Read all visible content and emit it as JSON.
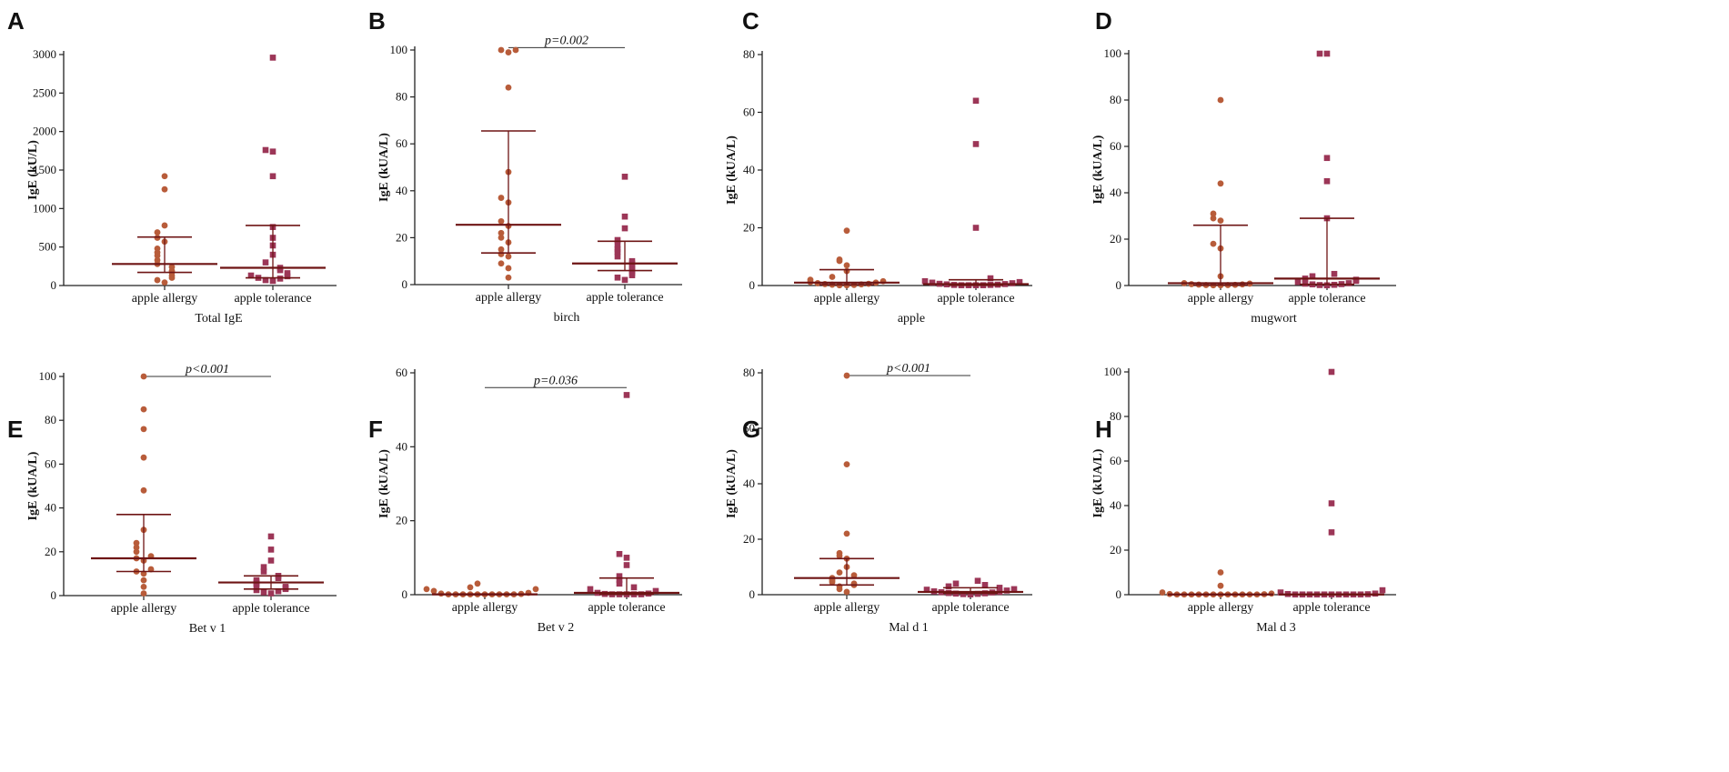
{
  "colors": {
    "allergy": "#b85c3a",
    "tolerance": "#9c3657",
    "median_line": "#6e1414",
    "axis": "#222222",
    "sig_line": "#333333"
  },
  "chart_data": [
    {
      "letter": "A",
      "type": "scatter",
      "xlabel": "Total IgE",
      "ylabel": "IgE (kU/L)",
      "ylim": [
        0,
        3000
      ],
      "yticks": [
        0,
        500,
        1000,
        1500,
        2000,
        2500,
        3000
      ],
      "categories": [
        "apple allergy",
        "apple tolerance"
      ],
      "series": [
        {
          "name": "apple allergy",
          "marker": "circle",
          "median": 280,
          "q1": 170,
          "q3": 630,
          "values": [
            1420,
            1250,
            780,
            690,
            620,
            570,
            480,
            430,
            390,
            330,
            280,
            240,
            190,
            170,
            130,
            100,
            70,
            40
          ]
        },
        {
          "name": "apple tolerance",
          "marker": "square",
          "median": 230,
          "q1": 100,
          "q3": 780,
          "values": [
            2960,
            1760,
            1740,
            1420,
            760,
            620,
            520,
            400,
            300,
            230,
            200,
            160,
            130,
            120,
            100,
            90,
            70,
            60
          ]
        }
      ],
      "significance": null
    },
    {
      "letter": "B",
      "type": "scatter",
      "xlabel": "birch",
      "ylabel": "IgE (kUA/L)",
      "ylim": [
        0,
        100
      ],
      "yticks": [
        0,
        20,
        40,
        60,
        80,
        100
      ],
      "categories": [
        "apple allergy",
        "apple tolerance"
      ],
      "series": [
        {
          "name": "apple allergy",
          "marker": "circle",
          "median": 25.5,
          "q1": 13.5,
          "q3": 65.5,
          "values": [
            100,
            100,
            99,
            84,
            48,
            37,
            35,
            27,
            25,
            22,
            20,
            18,
            15,
            13,
            12,
            9,
            7,
            3
          ]
        },
        {
          "name": "apple tolerance",
          "marker": "square",
          "median": 9,
          "q1": 6,
          "q3": 18.5,
          "values": [
            46,
            29,
            24,
            19,
            17,
            15,
            14,
            12,
            10,
            9,
            8,
            7,
            6,
            5,
            4,
            3,
            2
          ]
        }
      ],
      "significance": {
        "label": "p=0.002",
        "value": 101
      }
    },
    {
      "letter": "C",
      "type": "scatter",
      "xlabel": "apple",
      "ylabel": "IgE (kUA/L)",
      "ylim": [
        0,
        80
      ],
      "yticks": [
        0,
        20,
        40,
        60,
        80
      ],
      "categories": [
        "apple allergy",
        "apple tolerance"
      ],
      "series": [
        {
          "name": "apple allergy",
          "marker": "circle",
          "median": 1,
          "q1": 0.3,
          "q3": 5.5,
          "values": [
            19,
            9,
            8.5,
            7,
            5,
            3,
            2,
            1.5,
            1.2,
            1,
            0.8,
            0.6,
            0.5,
            0.4,
            0.3,
            0.2,
            0.1,
            0.1
          ]
        },
        {
          "name": "apple tolerance",
          "marker": "square",
          "median": 0.5,
          "q1": 0.1,
          "q3": 2,
          "values": [
            64,
            49,
            20,
            2.5,
            1.5,
            1.2,
            1,
            0.8,
            0.6,
            0.5,
            0.4,
            0.3,
            0.2,
            0.2,
            0.1,
            0.1,
            0.1,
            0.1
          ]
        }
      ],
      "significance": null
    },
    {
      "letter": "D",
      "type": "scatter",
      "xlabel": "mugwort",
      "ylabel": "IgE (kUA/L)",
      "ylim": [
        0,
        100
      ],
      "yticks": [
        0,
        20,
        40,
        60,
        80,
        100
      ],
      "categories": [
        "apple allergy",
        "apple tolerance"
      ],
      "series": [
        {
          "name": "apple allergy",
          "marker": "circle",
          "median": 1,
          "q1": 0.2,
          "q3": 26,
          "values": [
            80,
            44,
            31,
            29,
            28,
            18,
            16,
            4,
            1,
            0.8,
            0.6,
            0.5,
            0.4,
            0.3,
            0.2,
            0.2,
            0.1,
            0.1
          ]
        },
        {
          "name": "apple tolerance",
          "marker": "square",
          "median": 3,
          "q1": 0.5,
          "q3": 29,
          "values": [
            100,
            100,
            55,
            45,
            29,
            5,
            4,
            3,
            2.5,
            2,
            1.5,
            1,
            0.8,
            0.6,
            0.5,
            0.3,
            0.2,
            0.1
          ]
        }
      ],
      "significance": null
    },
    {
      "letter": "E",
      "type": "scatter",
      "xlabel": "Bet v 1",
      "ylabel": "IgE (kUA/L)",
      "ylim": [
        0,
        100
      ],
      "yticks": [
        0,
        20,
        40,
        60,
        80,
        100
      ],
      "categories": [
        "apple allergy",
        "apple tolerance"
      ],
      "series": [
        {
          "name": "apple allergy",
          "marker": "circle",
          "median": 17,
          "q1": 11,
          "q3": 37,
          "values": [
            100,
            85,
            76,
            63,
            48,
            30,
            24,
            22,
            20,
            18,
            17,
            16,
            12,
            11,
            10,
            7,
            4,
            1
          ]
        },
        {
          "name": "apple tolerance",
          "marker": "square",
          "median": 6,
          "q1": 3,
          "q3": 9,
          "values": [
            27,
            21,
            16,
            13,
            11,
            9,
            8,
            7,
            6,
            5.5,
            5,
            4,
            3.5,
            3,
            2.5,
            2,
            1.5,
            1
          ]
        }
      ],
      "significance": {
        "label": "p<0.001",
        "value": 100
      }
    },
    {
      "letter": "F",
      "type": "scatter",
      "xlabel": "Bet v 2",
      "ylabel": "IgE (kUA/L)",
      "ylim": [
        0,
        60
      ],
      "yticks": [
        0,
        20,
        40,
        60
      ],
      "categories": [
        "apple allergy",
        "apple tolerance"
      ],
      "series": [
        {
          "name": "apple allergy",
          "marker": "circle",
          "median": 0.1,
          "q1": 0,
          "q3": 0.2,
          "values": [
            3,
            2,
            1.5,
            1.5,
            1,
            0.5,
            0.3,
            0.2,
            0.1,
            0.1,
            0.1,
            0.1,
            0.1,
            0.1,
            0.1,
            0.1,
            0.1,
            0.1
          ]
        },
        {
          "name": "apple tolerance",
          "marker": "square",
          "median": 0.5,
          "q1": 0.1,
          "q3": 4.5,
          "values": [
            54,
            11,
            10,
            8,
            5,
            4,
            3,
            2,
            1.5,
            1,
            0.5,
            0.3,
            0.2,
            0.1,
            0.1,
            0.1,
            0.1,
            0.1
          ]
        }
      ],
      "significance": {
        "label": "p=0.036",
        "value": 56
      }
    },
    {
      "letter": "G",
      "type": "scatter",
      "xlabel": "Mal d 1",
      "ylabel": "IgE (kUA/L)",
      "ylim": [
        0,
        80
      ],
      "yticks": [
        0,
        20,
        40,
        60,
        80
      ],
      "categories": [
        "apple allergy",
        "apple tolerance"
      ],
      "series": [
        {
          "name": "apple allergy",
          "marker": "circle",
          "median": 6,
          "q1": 3.5,
          "q3": 13,
          "values": [
            79,
            47,
            22,
            15,
            14,
            13,
            10,
            8,
            7,
            6,
            5.5,
            5,
            4.5,
            4,
            3.5,
            3,
            2,
            1
          ]
        },
        {
          "name": "apple tolerance",
          "marker": "square",
          "median": 1,
          "q1": 0.5,
          "q3": 2.5,
          "values": [
            5,
            4,
            3.5,
            3,
            2.5,
            2,
            1.8,
            1.5,
            1.2,
            1,
            0.9,
            0.8,
            0.6,
            0.5,
            0.4,
            0.3,
            0.2,
            0.1
          ]
        }
      ],
      "significance": {
        "label": "p<0.001",
        "value": 79
      }
    },
    {
      "letter": "H",
      "type": "scatter",
      "xlabel": "Mal d 3",
      "ylabel": "IgE (kUA/L)",
      "ylim": [
        0,
        100
      ],
      "yticks": [
        0,
        20,
        40,
        60,
        80,
        100
      ],
      "categories": [
        "apple allergy",
        "apple tolerance"
      ],
      "series": [
        {
          "name": "apple allergy",
          "marker": "circle",
          "median": 0.1,
          "q1": 0,
          "q3": 0.2,
          "values": [
            10,
            4,
            1,
            0.5,
            0.3,
            0.2,
            0.1,
            0.1,
            0.1,
            0.1,
            0.1,
            0.1,
            0.1,
            0.1,
            0.1,
            0.1,
            0.1,
            0.1
          ]
        },
        {
          "name": "apple tolerance",
          "marker": "square",
          "median": 0.1,
          "q1": 0,
          "q3": 0.3,
          "values": [
            100,
            41,
            28,
            2,
            1,
            0.5,
            0.3,
            0.2,
            0.1,
            0.1,
            0.1,
            0.1,
            0.1,
            0.1,
            0.1,
            0.1,
            0.1,
            0.1
          ]
        }
      ],
      "significance": null
    }
  ]
}
